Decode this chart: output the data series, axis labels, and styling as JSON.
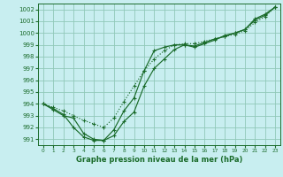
{
  "xlabel": "Graphe pression niveau de la mer (hPa)",
  "background_color": "#c8eef0",
  "grid_color": "#90c8b8",
  "line_color": "#1a6b2a",
  "ylim": [
    990.5,
    1002.5
  ],
  "xlim": [
    -0.5,
    23.5
  ],
  "yticks": [
    991,
    992,
    993,
    994,
    995,
    996,
    997,
    998,
    999,
    1000,
    1001,
    1002
  ],
  "xticks": [
    0,
    1,
    2,
    3,
    4,
    5,
    6,
    7,
    8,
    9,
    10,
    11,
    12,
    13,
    14,
    15,
    16,
    17,
    18,
    19,
    20,
    21,
    22,
    23
  ],
  "line1_x": [
    0,
    1,
    2,
    3,
    4,
    5,
    6,
    7,
    8,
    9,
    10,
    11,
    12,
    13,
    14,
    15,
    16,
    17,
    18,
    19,
    20,
    21,
    22,
    23
  ],
  "line1_y": [
    994.0,
    993.7,
    993.4,
    993.0,
    992.6,
    992.3,
    992.0,
    992.8,
    994.2,
    995.5,
    996.8,
    997.8,
    998.5,
    999.0,
    999.1,
    999.1,
    999.3,
    999.5,
    999.7,
    999.9,
    1000.2,
    1000.9,
    1001.4,
    1002.2
  ],
  "line2_x": [
    0,
    1,
    2,
    3,
    4,
    5,
    6,
    7,
    8,
    9,
    10,
    11,
    12,
    13,
    14,
    15,
    16,
    17,
    18,
    19,
    20,
    21,
    22,
    23
  ],
  "line2_y": [
    994.0,
    993.6,
    993.1,
    992.0,
    991.2,
    990.9,
    990.9,
    991.8,
    993.4,
    994.5,
    996.8,
    998.5,
    998.8,
    999.0,
    999.0,
    998.9,
    999.2,
    999.5,
    999.7,
    1000.0,
    1000.3,
    1001.1,
    1001.5,
    1002.2
  ],
  "line3_x": [
    0,
    1,
    2,
    3,
    4,
    5,
    6,
    7,
    8,
    9,
    10,
    11,
    12,
    13,
    14,
    15,
    16,
    17,
    18,
    19,
    20,
    21,
    22,
    23
  ],
  "line3_y": [
    994.0,
    993.5,
    993.0,
    992.8,
    991.5,
    991.0,
    990.9,
    991.3,
    992.5,
    993.3,
    995.5,
    997.0,
    997.8,
    998.6,
    999.0,
    998.8,
    999.1,
    999.4,
    999.8,
    1000.0,
    1000.3,
    1001.2,
    1001.6,
    1002.2
  ]
}
